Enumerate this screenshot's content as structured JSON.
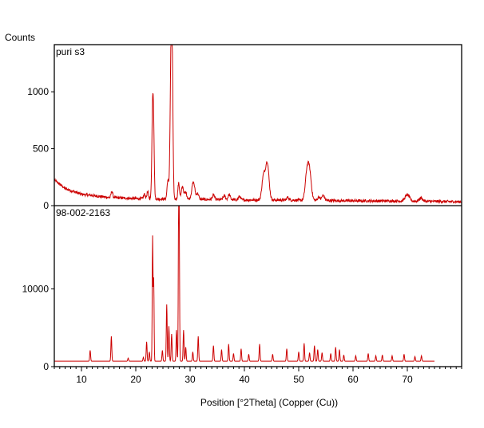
{
  "chart_data": {
    "type": "line",
    "ylabel": "Counts",
    "xlabel": "Position [°2Theta] (Copper (Cu))",
    "xlim": [
      5,
      80
    ],
    "x_ticks": [
      10,
      20,
      30,
      40,
      50,
      60,
      70
    ],
    "line_color": "#cc0000",
    "panels": [
      {
        "name": "puri s3",
        "ylim": [
          0,
          1400
        ],
        "y_ticks": [
          0,
          500,
          1000
        ],
        "background": [
          [
            5,
            225
          ],
          [
            7,
            150
          ],
          [
            10,
            100
          ],
          [
            15,
            72
          ],
          [
            20,
            62
          ],
          [
            25,
            58
          ],
          [
            30,
            56
          ],
          [
            40,
            50
          ],
          [
            50,
            48
          ],
          [
            60,
            42
          ],
          [
            70,
            40
          ],
          [
            80,
            34
          ]
        ],
        "noise": 12,
        "peaks": [
          [
            15.6,
            55,
            0.15
          ],
          [
            21.6,
            40,
            0.15
          ],
          [
            22.2,
            60,
            0.15
          ],
          [
            23.1,
            780,
            0.14
          ],
          [
            23.3,
            450,
            0.12
          ],
          [
            25.9,
            160,
            0.15
          ],
          [
            26.5,
            1150,
            0.18
          ],
          [
            26.7,
            900,
            0.15
          ],
          [
            27.9,
            140,
            0.15
          ],
          [
            28.6,
            110,
            0.2
          ],
          [
            29.2,
            60,
            0.2
          ],
          [
            30.6,
            150,
            0.28
          ],
          [
            31.4,
            50,
            0.2
          ],
          [
            34.3,
            40,
            0.2
          ],
          [
            36.3,
            35,
            0.2
          ],
          [
            37.2,
            45,
            0.2
          ],
          [
            39.1,
            30,
            0.2
          ],
          [
            43.5,
            200,
            0.28
          ],
          [
            44.2,
            330,
            0.32
          ],
          [
            48.0,
            25,
            0.2
          ],
          [
            51.5,
            220,
            0.3
          ],
          [
            52.0,
            240,
            0.32
          ],
          [
            53.7,
            30,
            0.2
          ],
          [
            54.5,
            45,
            0.25
          ],
          [
            70.0,
            55,
            0.4
          ],
          [
            72.5,
            30,
            0.3
          ]
        ]
      },
      {
        "name": "98-002-2163",
        "ylim": [
          0,
          20500
        ],
        "y_ticks": [
          0,
          10000
        ],
        "background": [
          [
            5,
            700
          ],
          [
            75,
            700
          ]
        ],
        "x_end": 75,
        "noise": 0,
        "peaks": [
          [
            11.6,
            1400,
            0.08
          ],
          [
            15.5,
            3200,
            0.08
          ],
          [
            18.6,
            400,
            0.08
          ],
          [
            21.4,
            500,
            0.08
          ],
          [
            22.0,
            2500,
            0.08
          ],
          [
            22.5,
            1200,
            0.08
          ],
          [
            23.1,
            16000,
            0.07
          ],
          [
            23.3,
            10500,
            0.07
          ],
          [
            24.9,
            1400,
            0.08
          ],
          [
            25.7,
            7300,
            0.08
          ],
          [
            26.1,
            4500,
            0.08
          ],
          [
            26.6,
            3500,
            0.08
          ],
          [
            27.5,
            4000,
            0.08
          ],
          [
            27.9,
            19500,
            0.07
          ],
          [
            28.0,
            14000,
            0.07
          ],
          [
            28.8,
            4000,
            0.08
          ],
          [
            29.2,
            1800,
            0.08
          ],
          [
            30.5,
            1200,
            0.08
          ],
          [
            31.5,
            3200,
            0.08
          ],
          [
            34.3,
            2000,
            0.08
          ],
          [
            35.8,
            1500,
            0.08
          ],
          [
            37.1,
            2200,
            0.08
          ],
          [
            38.0,
            1000,
            0.08
          ],
          [
            39.4,
            1600,
            0.08
          ],
          [
            40.8,
            900,
            0.08
          ],
          [
            42.8,
            2200,
            0.08
          ],
          [
            45.2,
            900,
            0.08
          ],
          [
            47.8,
            1600,
            0.08
          ],
          [
            50.0,
            1200,
            0.08
          ],
          [
            51.0,
            2300,
            0.08
          ],
          [
            52.0,
            1100,
            0.08
          ],
          [
            52.9,
            2000,
            0.08
          ],
          [
            53.5,
            1500,
            0.08
          ],
          [
            54.3,
            1100,
            0.08
          ],
          [
            55.9,
            1000,
            0.08
          ],
          [
            56.8,
            1800,
            0.08
          ],
          [
            57.5,
            1500,
            0.08
          ],
          [
            58.3,
            800,
            0.08
          ],
          [
            60.5,
            700,
            0.08
          ],
          [
            62.8,
            1000,
            0.08
          ],
          [
            64.2,
            700,
            0.08
          ],
          [
            65.4,
            800,
            0.08
          ],
          [
            67.2,
            700,
            0.08
          ],
          [
            69.4,
            900,
            0.08
          ],
          [
            71.4,
            600,
            0.08
          ],
          [
            72.6,
            700,
            0.08
          ]
        ]
      }
    ]
  }
}
